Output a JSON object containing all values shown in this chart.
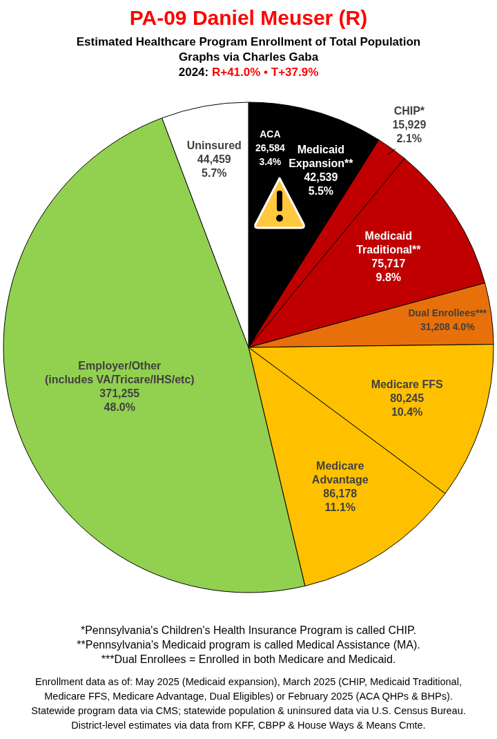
{
  "chart_data": {
    "type": "pie",
    "title": "PA-09 Daniel Meuser (R)",
    "subtitle": "Estimated Healthcare Program Enrollment of Total Population\nGraphs via Charles Gaba\n2024: R+41.0% • T+37.9%",
    "categories": [
      "ACA",
      "Medicaid\nExpansion**",
      "CHIP*",
      "Medicaid\nTraditional**",
      "Dual Enrollees***",
      "Medicare FFS",
      "Medicare\nAdvantage",
      "Employer/Other\n(includes VA/Tricare/IHS/etc)",
      "Uninsured"
    ],
    "values": [
      26584,
      42539,
      15929,
      75717,
      31208,
      80245,
      86178,
      371255,
      44459
    ],
    "value_labels": [
      "26,584\n3.4%",
      "42,539\n5.5%",
      "15,929\n2.1%",
      "75,717\n9.8%",
      "31,208 4.0%",
      "80,245\n10.4%",
      "86,178\n11.1%",
      "371,255\n48.0%",
      "44,459\n5.7%"
    ],
    "colors": [
      "#000000",
      "#000000",
      "#c00000",
      "#c00000",
      "#e8700a",
      "#ffc000",
      "#ffc000",
      "#92d050",
      "#ffffff"
    ],
    "annotations": [
      "*Pennsylvania's Children's Health Insurance Program is called CHIP.",
      "**Pennsylvania's Medicaid program is called Medical Assistance (MA).",
      "***Dual Enrollees = Enrolled in both Medicare and Medicaid.",
      "Enrollment data as of: May 2025 (Medicaid expansion), March 2025 (CHIP, Medicaid Traditional,",
      "Medicare FFS, Medicare Advantage, Dual Eligibles) or February 2025 (ACA QHPs & BHPs).",
      "Statewide program data via CMS; statewide population & uninsured data via U.S. Census Bureau.",
      "District-level estimates via data from KFF, CBPP & House Ways & Means Cmte."
    ]
  }
}
